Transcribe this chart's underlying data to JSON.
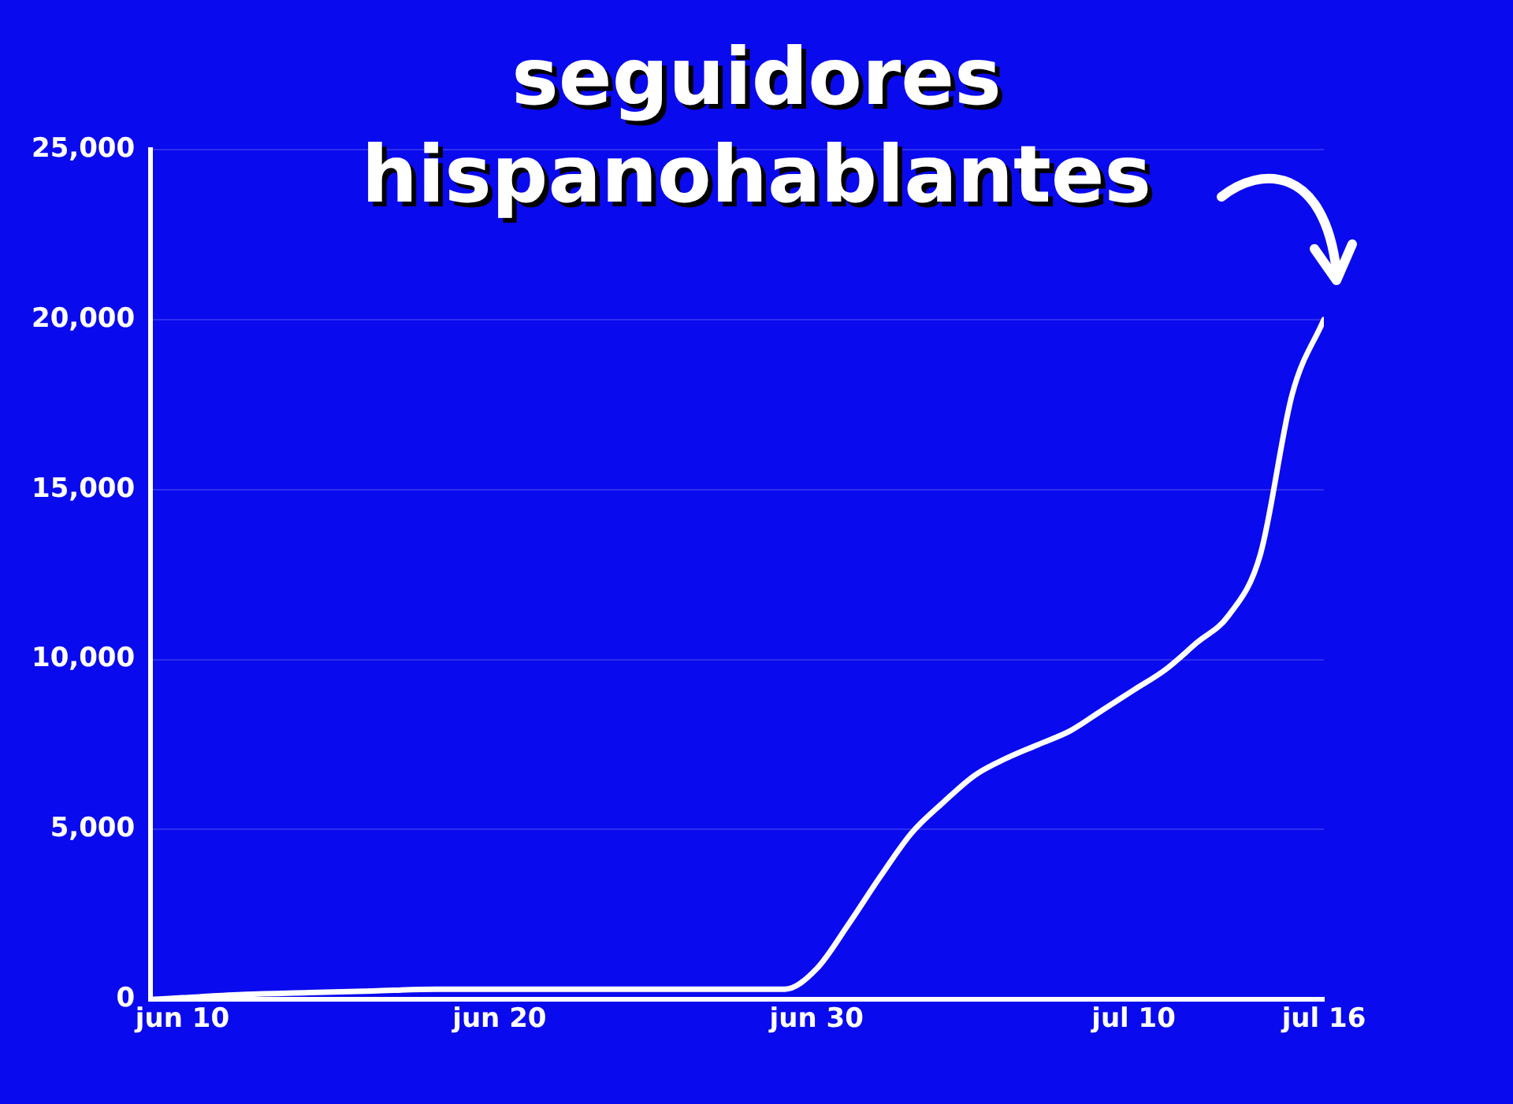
{
  "chart_data": {
    "type": "line",
    "title": "seguidores hispanohablantes",
    "x": [
      "--06-09",
      "--06-10",
      "--06-12",
      "--06-14",
      "--06-16",
      "--06-18",
      "--06-22",
      "--06-26",
      "--06-29",
      "--06-30",
      "--07-01",
      "--07-02",
      "--07-03",
      "--07-04",
      "--07-05",
      "--07-06",
      "--07-07",
      "--07-08",
      "--07-09",
      "--07-10",
      "--07-11",
      "--07-12",
      "--07-13",
      "--07-14",
      "--07-15",
      "--07-16"
    ],
    "series": [
      {
        "color": "#ffffff",
        "values": [
          0,
          50,
          150,
          200,
          250,
          300,
          300,
          300,
          300,
          900,
          2200,
          3600,
          4900,
          5800,
          6600,
          7100,
          7500,
          7900,
          8500,
          9100,
          9700,
          10500,
          11300,
          13100,
          17800,
          20000
        ]
      }
    ],
    "xlim": [
      "--06-09",
      "--07-16"
    ],
    "xticks": [
      {
        "value": "--06-10",
        "label": "jun 10"
      },
      {
        "value": "--06-20",
        "label": "jun 20"
      },
      {
        "value": "--06-30",
        "label": "jun 30"
      },
      {
        "value": "--07-10",
        "label": "jul 10"
      },
      {
        "value": "--07-16",
        "label": "jul 16"
      }
    ],
    "ylim": [
      0,
      25000
    ],
    "yticks": [
      0,
      {
        "value": 5000,
        "label": "5,000"
      },
      {
        "value": 10000,
        "label": "10,000"
      },
      {
        "value": 15000,
        "label": "15,000"
      },
      {
        "value": 20000,
        "label": "20,000"
      },
      {
        "value": 25000,
        "label": "25,000"
      }
    ],
    "grid": "y",
    "legend": false,
    "marker": "none",
    "line_style": "solid"
  }
}
